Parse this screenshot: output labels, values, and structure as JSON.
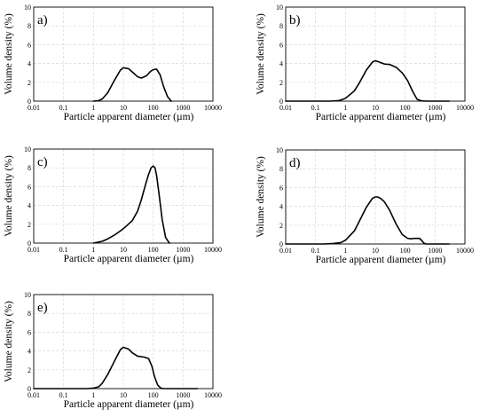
{
  "chart_data": [
    {
      "type": "line",
      "panel_label": "a)",
      "xlabel": "Particle apparent diameter (µm)",
      "ylabel": "Volume density (%)",
      "x_scale": "log",
      "xlim": [
        0.01,
        10000
      ],
      "ylim": [
        0,
        10
      ],
      "x_ticks": [
        "0.01",
        "0.1",
        "1",
        "10",
        "100",
        "1000",
        "10000"
      ],
      "y_ticks": [
        "0",
        "2",
        "4",
        "6",
        "8",
        "10"
      ],
      "grid": true,
      "series": [
        {
          "x": [
            1,
            1.5,
            2,
            3,
            5,
            8,
            10,
            15,
            20,
            30,
            40,
            60,
            80,
            100,
            130,
            170,
            220,
            300,
            400
          ],
          "y": [
            0,
            0.05,
            0.25,
            0.9,
            2.2,
            3.3,
            3.55,
            3.45,
            3.1,
            2.6,
            2.45,
            2.7,
            3.15,
            3.35,
            3.4,
            2.8,
            1.6,
            0.5,
            0
          ]
        }
      ]
    },
    {
      "type": "line",
      "panel_label": "b)",
      "xlabel": "Particle apparent diameter (µm)",
      "ylabel": "Volume density (%)",
      "x_scale": "log",
      "xlim": [
        0.01,
        10000
      ],
      "ylim": [
        0,
        10
      ],
      "x_ticks": [
        "0.01",
        "0.1",
        "1",
        "10",
        "100",
        "1000",
        "10000"
      ],
      "y_ticks": [
        "0",
        "2",
        "4",
        "6",
        "8",
        "10"
      ],
      "grid": true,
      "series": [
        {
          "x": [
            0.01,
            0.3,
            0.6,
            1,
            2,
            3,
            5,
            8,
            10,
            15,
            20,
            30,
            50,
            80,
            120,
            180,
            250,
            350,
            500,
            1000,
            3000
          ],
          "y": [
            0,
            0,
            0.05,
            0.3,
            1.1,
            2.0,
            3.3,
            4.15,
            4.3,
            4.1,
            3.95,
            3.9,
            3.6,
            3.0,
            2.2,
            1.0,
            0.2,
            0.03,
            0,
            0,
            0
          ]
        }
      ]
    },
    {
      "type": "line",
      "panel_label": "c)",
      "xlabel": "Particle apparent diameter (µm)",
      "ylabel": "Volume density (%)",
      "x_scale": "log",
      "xlim": [
        0.01,
        10000
      ],
      "ylim": [
        0,
        10
      ],
      "x_ticks": [
        "0.01",
        "0.1",
        "1",
        "10",
        "100",
        "1000",
        "10000"
      ],
      "y_ticks": [
        "0",
        "2",
        "4",
        "6",
        "8",
        "10"
      ],
      "grid": true,
      "series": [
        {
          "x": [
            1,
            2,
            3,
            5,
            8,
            12,
            20,
            30,
            40,
            55,
            70,
            85,
            100,
            115,
            130,
            160,
            200,
            260,
            350
          ],
          "y": [
            0,
            0.2,
            0.45,
            0.85,
            1.3,
            1.75,
            2.4,
            3.4,
            4.6,
            6.2,
            7.3,
            8.0,
            8.2,
            8.0,
            7.2,
            5.0,
            2.5,
            0.6,
            0
          ]
        }
      ]
    },
    {
      "type": "line",
      "panel_label": "d)",
      "xlabel": "Particle apparent diameter (µm)",
      "ylabel": "Volume density (%)",
      "x_scale": "log",
      "xlim": [
        0.01,
        10000
      ],
      "ylim": [
        0,
        10
      ],
      "x_ticks": [
        "0.01",
        "0.1",
        "1",
        "10",
        "100",
        "1000",
        "10000"
      ],
      "y_ticks": [
        "0",
        "2",
        "4",
        "6",
        "8",
        "10"
      ],
      "grid": true,
      "series": [
        {
          "x": [
            0.01,
            0.2,
            0.4,
            0.7,
            1,
            2,
            3,
            5,
            8,
            10,
            12,
            15,
            20,
            30,
            50,
            80,
            120,
            160,
            200,
            300,
            350,
            420,
            500,
            1000,
            3000
          ],
          "y": [
            0,
            0,
            0.05,
            0.15,
            0.4,
            1.4,
            2.5,
            3.9,
            4.85,
            5.0,
            5.0,
            4.85,
            4.5,
            3.6,
            2.1,
            1.0,
            0.6,
            0.55,
            0.6,
            0.6,
            0.4,
            0.1,
            0,
            0,
            0
          ]
        }
      ]
    },
    {
      "type": "line",
      "panel_label": "e)",
      "xlabel": "Particle apparent diameter (µm)",
      "ylabel": "Volume density (%)",
      "x_scale": "log",
      "xlim": [
        0.01,
        10000
      ],
      "ylim": [
        0,
        10
      ],
      "x_ticks": [
        "0.01",
        "0.1",
        "1",
        "10",
        "100",
        "1000",
        "10000"
      ],
      "y_ticks": [
        "0",
        "2",
        "4",
        "6",
        "8",
        "10"
      ],
      "grid": true,
      "series": [
        {
          "x": [
            0.01,
            0.6,
            1,
            1.5,
            2,
            3,
            5,
            8,
            10,
            15,
            20,
            30,
            50,
            70,
            90,
            110,
            140,
            180,
            220,
            1000,
            3000
          ],
          "y": [
            0,
            0,
            0.05,
            0.2,
            0.6,
            1.5,
            2.9,
            4.15,
            4.4,
            4.2,
            3.8,
            3.45,
            3.35,
            3.2,
            2.4,
            1.3,
            0.4,
            0.05,
            0,
            0,
            0
          ]
        }
      ]
    }
  ]
}
